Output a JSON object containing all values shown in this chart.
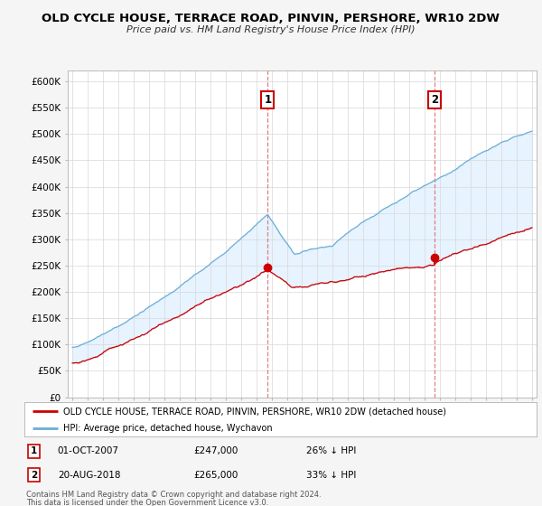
{
  "title": "OLD CYCLE HOUSE, TERRACE ROAD, PINVIN, PERSHORE, WR10 2DW",
  "subtitle": "Price paid vs. HM Land Registry's House Price Index (HPI)",
  "hpi_label": "HPI: Average price, detached house, Wychavon",
  "property_label": "OLD CYCLE HOUSE, TERRACE ROAD, PINVIN, PERSHORE, WR10 2DW (detached house)",
  "annotation1": {
    "num": "1",
    "date": "01-OCT-2007",
    "price": "£247,000",
    "pct": "26% ↓ HPI",
    "x_year": 2007.75
  },
  "annotation2": {
    "num": "2",
    "date": "20-AUG-2018",
    "price": "£265,000",
    "pct": "33% ↓ HPI",
    "x_year": 2018.62
  },
  "footer1": "Contains HM Land Registry data © Crown copyright and database right 2024.",
  "footer2": "This data is licensed under the Open Government Licence v3.0.",
  "ylim": [
    0,
    620000
  ],
  "yticks": [
    0,
    50000,
    100000,
    150000,
    200000,
    250000,
    300000,
    350000,
    400000,
    450000,
    500000,
    550000,
    600000
  ],
  "ytick_labels": [
    "£0",
    "£50K",
    "£100K",
    "£150K",
    "£200K",
    "£250K",
    "£300K",
    "£350K",
    "£400K",
    "£450K",
    "£500K",
    "£550K",
    "£600K"
  ],
  "xlim_start": 1994.7,
  "xlim_end": 2025.3,
  "background_color": "#f5f5f5",
  "plot_bg": "#ffffff",
  "hpi_color": "#6baed6",
  "fill_color": "#ddeeff",
  "property_color": "#cc0000",
  "dashed_color": "#e08080",
  "grid_color": "#d8d8d8",
  "annot_box_color": "#cc0000"
}
